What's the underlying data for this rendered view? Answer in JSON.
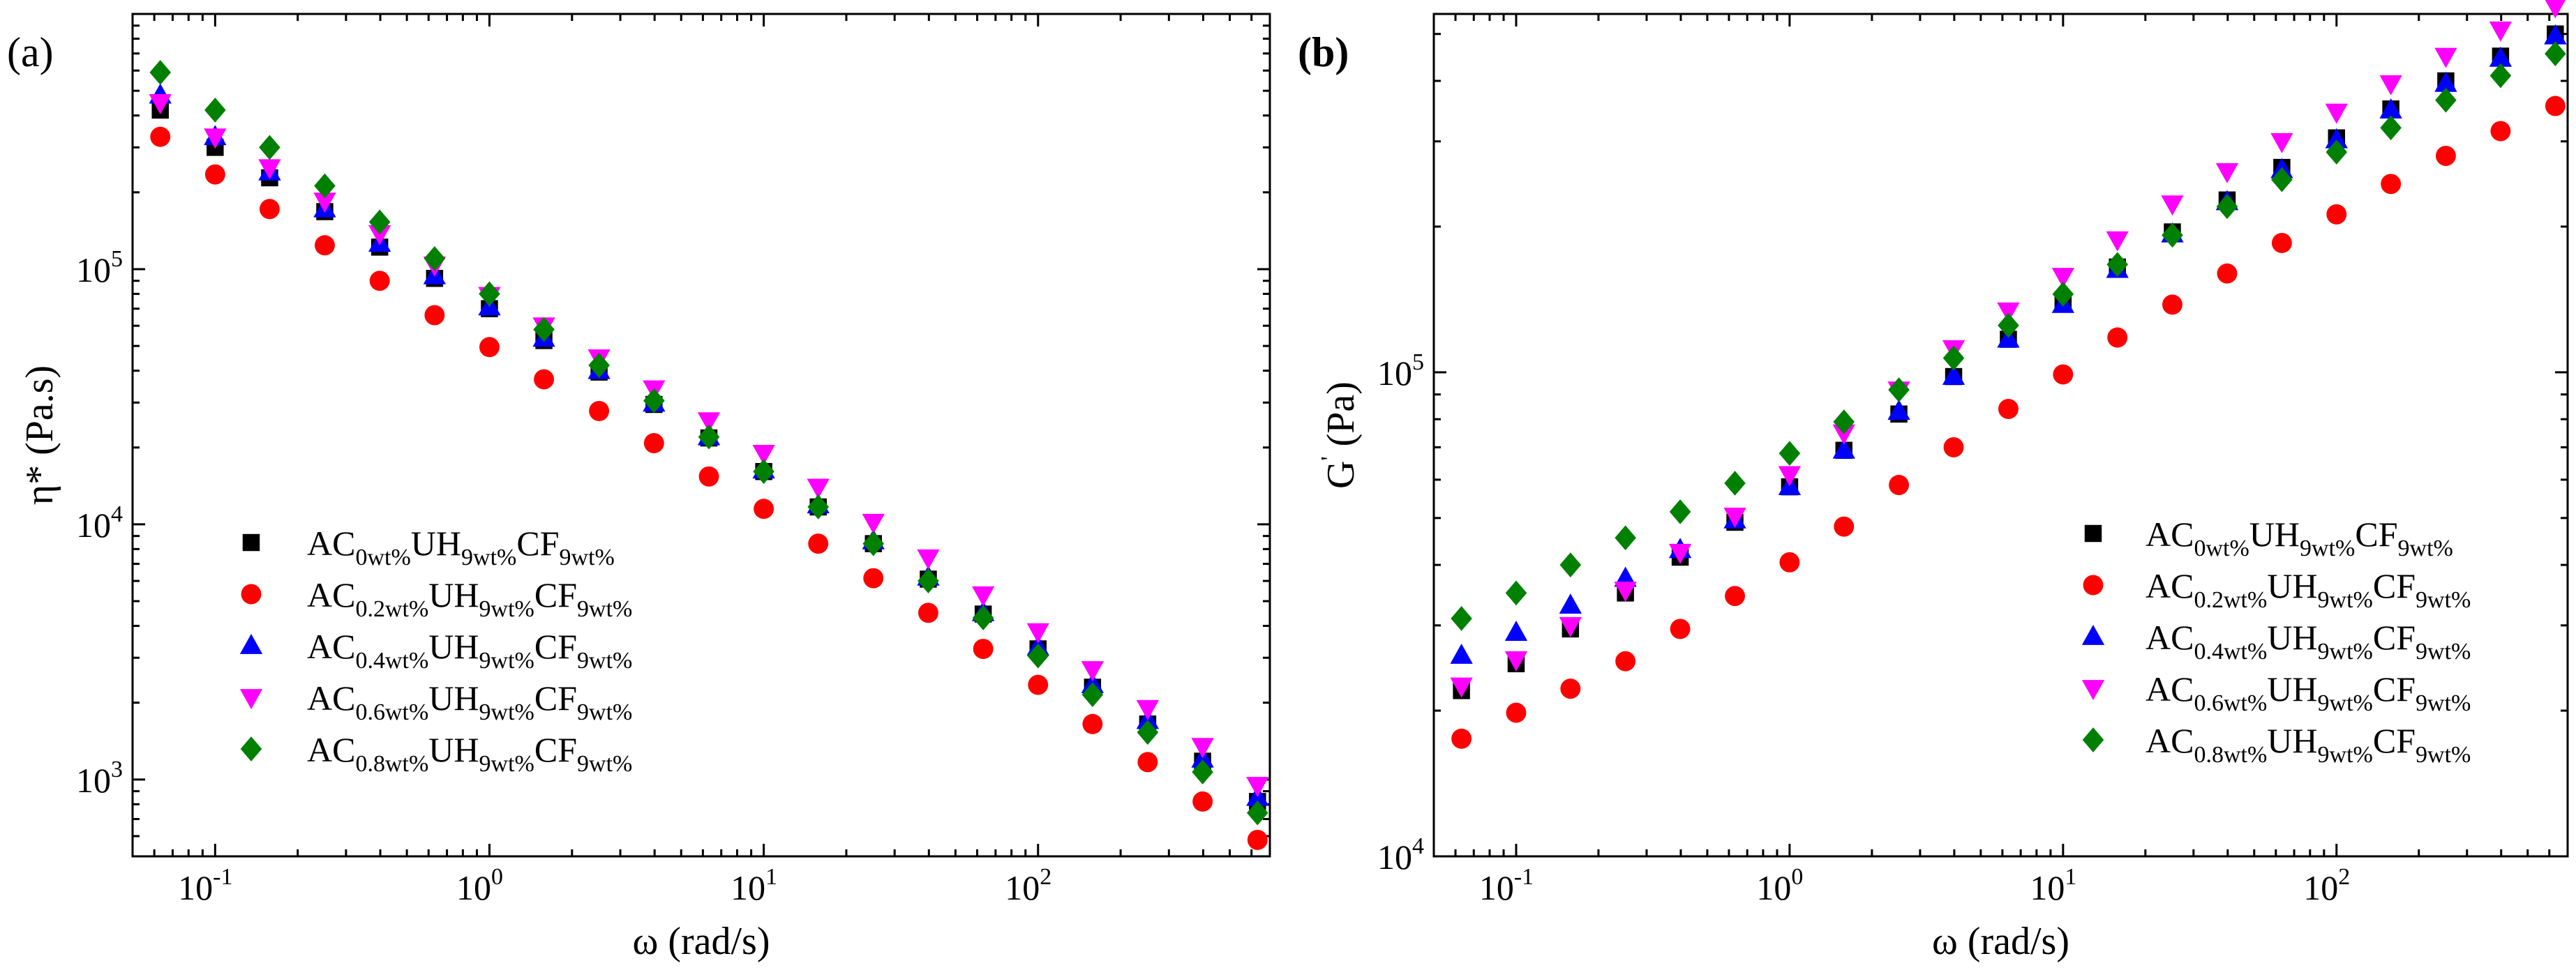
{
  "chart_data": [
    {
      "type": "scatter",
      "panel_label": "(a)",
      "title": "",
      "xlabel": "ω (rad/s)",
      "ylabel_main": "η* (Pa.s)",
      "xscale": "log",
      "yscale": "log",
      "xlim": [
        0.05,
        700
      ],
      "ylim": [
        500,
        1000000
      ],
      "x_ticks": [
        {
          "value": 0.1,
          "base": "10",
          "exp": "-1"
        },
        {
          "value": 1,
          "base": "10",
          "exp": "0"
        },
        {
          "value": 10,
          "base": "10",
          "exp": "1"
        },
        {
          "value": 100,
          "base": "10",
          "exp": "2"
        }
      ],
      "y_ticks": [
        {
          "value": 1000,
          "base": "10",
          "exp": "3"
        },
        {
          "value": 10000,
          "base": "10",
          "exp": "4"
        },
        {
          "value": 100000,
          "base": "10",
          "exp": "5"
        }
      ],
      "legend_position": "bottom-left",
      "x": [
        0.0631,
        0.1,
        0.158,
        0.251,
        0.398,
        0.631,
        1.0,
        1.58,
        2.51,
        3.98,
        6.31,
        10.0,
        15.8,
        25.1,
        39.8,
        63.1,
        100,
        158,
        251,
        398,
        631
      ],
      "series": [
        {
          "name": "AC0wt%UH9wt%CF9wt%",
          "marker": "square",
          "color": "#000000",
          "values": [
            420000,
            300000,
            228000,
            168000,
            122000,
            92000,
            70000,
            52500,
            39500,
            29500,
            21800,
            16100,
            11700,
            8400,
            6100,
            4450,
            3250,
            2300,
            1650,
            1180,
            820
          ]
        },
        {
          "name": "AC0.2wt%UH9wt%CF9wt%",
          "marker": "circle",
          "color": "#ff0000",
          "values": [
            330000,
            235000,
            172000,
            124000,
            90000,
            66000,
            49500,
            37000,
            27800,
            20800,
            15400,
            11500,
            8400,
            6150,
            4500,
            3250,
            2350,
            1650,
            1170,
            820,
            580
          ]
        },
        {
          "name": "AC0.4wt%UH9wt%CF9wt%",
          "marker": "triangle-up",
          "color": "#0000ff",
          "values": [
            480000,
            330000,
            240000,
            172000,
            126000,
            94000,
            71000,
            53500,
            40000,
            29800,
            22000,
            16300,
            11900,
            8600,
            6200,
            4500,
            3300,
            2350,
            1700,
            1200,
            850
          ]
        },
        {
          "name": "AC0.6wt%UH9wt%CF9wt%",
          "marker": "triangle-down",
          "color": "#ff00ff",
          "values": [
            450000,
            330000,
            250000,
            185000,
            138000,
            104000,
            79000,
            60000,
            45000,
            34000,
            25500,
            19000,
            14000,
            10200,
            7400,
            5300,
            3800,
            2700,
            1900,
            1350,
            950
          ]
        },
        {
          "name": "AC0.8wt%UH9wt%CF9wt%",
          "marker": "diamond",
          "color": "#008000",
          "values": [
            590000,
            420000,
            300000,
            212000,
            153000,
            110000,
            80000,
            58000,
            42000,
            30500,
            22000,
            16100,
            11700,
            8400,
            6000,
            4300,
            3050,
            2150,
            1530,
            1070,
            740
          ]
        }
      ]
    },
    {
      "type": "scatter",
      "panel_label": "(b)",
      "title": "",
      "xlabel": "ω (rad/s)",
      "ylabel_main": "G",
      "ylabel_prime": "'",
      "ylabel_unit": " (Pa)",
      "xscale": "log",
      "yscale": "log",
      "xlim": [
        0.05,
        700
      ],
      "ylim": [
        10000,
        550000
      ],
      "x_ticks": [
        {
          "value": 0.1,
          "base": "10",
          "exp": "-1"
        },
        {
          "value": 1,
          "base": "10",
          "exp": "0"
        },
        {
          "value": 10,
          "base": "10",
          "exp": "1"
        },
        {
          "value": 100,
          "base": "10",
          "exp": "2"
        }
      ],
      "y_ticks": [
        {
          "value": 10000,
          "base": "10",
          "exp": "4"
        },
        {
          "value": 100000,
          "base": "10",
          "exp": "5"
        }
      ],
      "legend_position": "bottom-right",
      "x": [
        0.0631,
        0.1,
        0.158,
        0.251,
        0.398,
        0.631,
        1.0,
        1.58,
        2.51,
        3.98,
        6.31,
        10.0,
        15.8,
        25.1,
        39.8,
        63.1,
        100,
        158,
        251,
        398,
        631
      ],
      "series": [
        {
          "name": "AC0wt%UH9wt%CF9wt%",
          "marker": "square",
          "color": "#000000",
          "values": [
            22000,
            25000,
            29500,
            35000,
            41500,
            49000,
            58000,
            69000,
            82000,
            98000,
            117000,
            139000,
            165000,
            195000,
            227000,
            265000,
            305000,
            350000,
            400000,
            450000,
            500000
          ]
        },
        {
          "name": "AC0.2wt%UH9wt%CF9wt%",
          "marker": "circle",
          "color": "#ff0000",
          "values": [
            17500,
            19800,
            22200,
            25300,
            29500,
            34500,
            40500,
            48000,
            58500,
            70000,
            84000,
            99000,
            118000,
            138000,
            160000,
            185000,
            212000,
            245000,
            280000,
            315000,
            355000
          ]
        },
        {
          "name": "AC0.4wt%UH9wt%CF9wt%",
          "marker": "triangle-up",
          "color": "#0000ff",
          "values": [
            26000,
            29000,
            33000,
            37500,
            43000,
            49500,
            58000,
            69000,
            83000,
            98000,
            117000,
            138000,
            163000,
            193000,
            225000,
            262000,
            302000,
            348000,
            395000,
            445000,
            495000
          ]
        },
        {
          "name": "AC0.6wt%UH9wt%CF9wt%",
          "marker": "triangle-down",
          "color": "#ff00ff",
          "values": [
            22500,
            25500,
            30000,
            35500,
            42500,
            50500,
            61500,
            75000,
            92000,
            112000,
            134000,
            158000,
            188000,
            223000,
            260000,
            300000,
            345000,
            395000,
            450000,
            510000,
            570000
          ]
        },
        {
          "name": "AC0.8wt%UH9wt%CF9wt%",
          "marker": "diamond",
          "color": "#008000",
          "values": [
            31000,
            35000,
            40000,
            45500,
            51500,
            59000,
            68000,
            79000,
            92000,
            107000,
            125000,
            145000,
            167000,
            192000,
            220000,
            250000,
            285000,
            320000,
            365000,
            410000,
            455000
          ]
        }
      ]
    }
  ],
  "legend_labels": [
    {
      "base1": "AC",
      "sub1": "0wt%",
      "base2": "UH",
      "sub2": "9wt%",
      "base3": "CF",
      "sub3": "9wt%"
    },
    {
      "base1": "AC",
      "sub1": "0.2wt%",
      "base2": "UH",
      "sub2": "9wt%",
      "base3": "CF",
      "sub3": "9wt%"
    },
    {
      "base1": "AC",
      "sub1": "0.4wt%",
      "base2": "UH",
      "sub2": "9wt%",
      "base3": "CF",
      "sub3": "9wt%"
    },
    {
      "base1": "AC",
      "sub1": "0.6wt%",
      "base2": "UH",
      "sub2": "9wt%",
      "base3": "CF",
      "sub3": "9wt%"
    },
    {
      "base1": "AC",
      "sub1": "0.8wt%",
      "base2": "UH",
      "sub2": "9wt%",
      "base3": "CF",
      "sub3": "9wt%"
    }
  ]
}
